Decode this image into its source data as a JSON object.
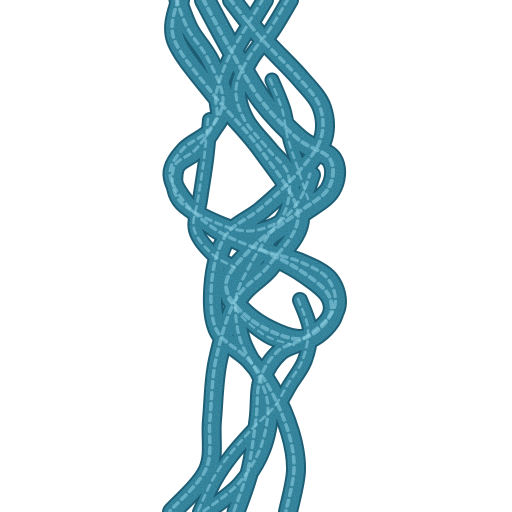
{
  "scene": {
    "subject": "twisted-strand-helix-icon",
    "background_color": "#ffffff",
    "strand_color": "#3f9ab5",
    "strand_highlight_color": "#8fd1e3",
    "strand_shadow_color": "#1e5e74",
    "strand_texture": "noisy-rope"
  }
}
